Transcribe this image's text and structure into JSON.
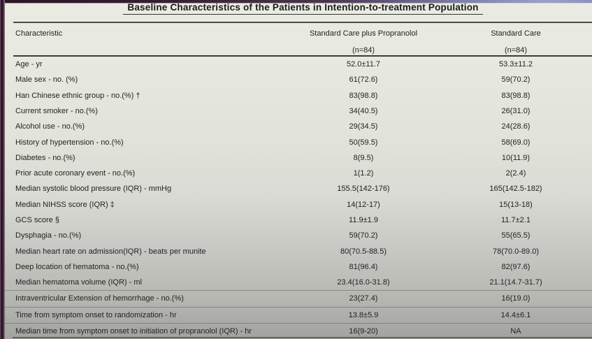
{
  "page": {
    "title": "Baseline Characteristics of the Patients in Intention-to-treatment Population"
  },
  "table": {
    "header": {
      "characteristic": "Characteristic",
      "group1": "Standard Care plus Propranolol",
      "group1_n": "(n=84)",
      "group2": "Standard Care",
      "group2_n": "(n=84)"
    },
    "rows": [
      {
        "label": "Age - yr",
        "propranolol": "52.0±11.7",
        "standard": "53.3±11.2"
      },
      {
        "label": "Male sex - no. (%)",
        "propranolol": "61(72.6)",
        "standard": "59(70.2)"
      },
      {
        "label": "Han Chinese ethnic group - no.(%) †",
        "propranolol": "83(98.8)",
        "standard": "83(98.8)"
      },
      {
        "label": "Current smoker - no.(%)",
        "propranolol": "34(40.5)",
        "standard": "26(31.0)"
      },
      {
        "label": "Alcohol use - no.(%)",
        "propranolol": "29(34.5)",
        "standard": "24(28.6)"
      },
      {
        "label": "History of hypertension - no.(%)",
        "propranolol": "50(59.5)",
        "standard": "58(69.0)"
      },
      {
        "label": "Diabetes - no.(%)",
        "propranolol": "8(9.5)",
        "standard": "10(11.9)"
      },
      {
        "label": "Prior acute coronary event - no.(%)",
        "propranolol": "1(1.2)",
        "standard": "2(2.4)"
      },
      {
        "label": "Median systolic blood pressure (IQR) - mmHg",
        "propranolol": "155.5(142-176)",
        "standard": "165(142.5-182)"
      },
      {
        "label": "Median NIHSS score (IQR) ‡",
        "propranolol": "14(12-17)",
        "standard": "15(13-18)"
      },
      {
        "label": "GCS score §",
        "propranolol": "11.9±1.9",
        "standard": "11.7±2.1"
      },
      {
        "label": "Dysphagia - no.(%)",
        "propranolol": "59(70.2)",
        "standard": "55(65.5)"
      },
      {
        "label": "Median heart rate on admission(IQR) - beats per munite",
        "propranolol": "80(70.5-88.5)",
        "standard": "78(70.0-89.0)"
      },
      {
        "label": "Deep location of hematoma - no.(%)",
        "propranolol": "81(96.4)",
        "standard": "82(97.6)"
      },
      {
        "label": "Median hematoma volume (IQR) - ml",
        "propranolol": "23.4(16.0-31.8)",
        "standard": "21.1(14.7-31.7)"
      },
      {
        "label": "Intraventricular Extension of hemorrhage - no.(%)",
        "propranolol": "23(27.4)",
        "standard": "16(19.0)"
      },
      {
        "label": "Time from symptom onset to randomization - hr",
        "propranolol": "13.8±5.9",
        "standard": "14.4±6.1"
      },
      {
        "label": "Median time from symptom onset to initiation of propranolol (IQR) - hr",
        "propranolol": "16(9-20)",
        "standard": "NA"
      }
    ]
  },
  "chart_data": {
    "type": "table",
    "title": "Baseline Characteristics of the Patients in Intention-to-treatment Population",
    "columns": [
      "Characteristic",
      "Standard Care plus Propranolol (n=84)",
      "Standard Care (n=84)"
    ],
    "rows": [
      [
        "Age - yr",
        "52.0±11.7",
        "53.3±11.2"
      ],
      [
        "Male sex - no. (%)",
        "61(72.6)",
        "59(70.2)"
      ],
      [
        "Han Chinese ethnic group - no.(%) †",
        "83(98.8)",
        "83(98.8)"
      ],
      [
        "Current smoker - no.(%)",
        "34(40.5)",
        "26(31.0)"
      ],
      [
        "Alcohol use - no.(%)",
        "29(34.5)",
        "24(28.6)"
      ],
      [
        "History of hypertension - no.(%)",
        "50(59.5)",
        "58(69.0)"
      ],
      [
        "Diabetes - no.(%)",
        "8(9.5)",
        "10(11.9)"
      ],
      [
        "Prior acute coronary event - no.(%)",
        "1(1.2)",
        "2(2.4)"
      ],
      [
        "Median systolic blood pressure (IQR) - mmHg",
        "155.5(142-176)",
        "165(142.5-182)"
      ],
      [
        "Median NIHSS score (IQR) ‡",
        "14(12-17)",
        "15(13-18)"
      ],
      [
        "GCS score §",
        "11.9±1.9",
        "11.7±2.1"
      ],
      [
        "Dysphagia - no.(%)",
        "59(70.2)",
        "55(65.5)"
      ],
      [
        "Median heart rate on admission(IQR) - beats per munite",
        "80(70.5-88.5)",
        "78(70.0-89.0)"
      ],
      [
        "Deep location of hematoma - no.(%)",
        "81(96.4)",
        "82(97.6)"
      ],
      [
        "Median hematoma volume (IQR) - ml",
        "23.4(16.0-31.8)",
        "21.1(14.7-31.7)"
      ],
      [
        "Intraventricular Extension of hemorrhage - no.(%)",
        "23(27.4)",
        "16(19.0)"
      ],
      [
        "Time from symptom onset to randomization - hr",
        "13.8±5.9",
        "14.4±6.1"
      ],
      [
        "Median time from symptom onset to initiation of propranolol (IQR) - hr",
        "16(9-20)",
        "NA"
      ]
    ]
  }
}
